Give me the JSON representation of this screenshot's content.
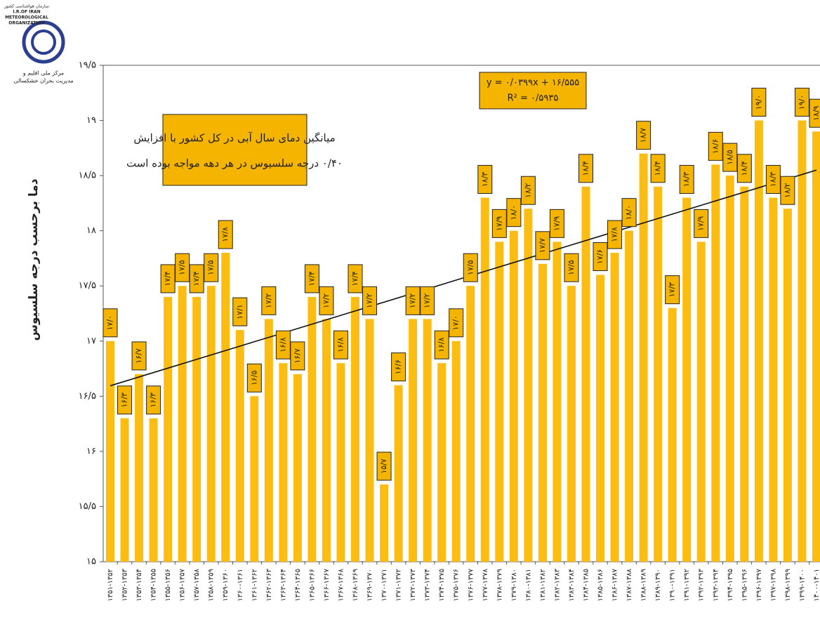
{
  "logo": {
    "org_fa": "سازمان هواشناسی کشور",
    "org_en_1": "I.R.OF IRAN",
    "org_en_2": "METEOROLOGICAL",
    "org_en_3": "ORGANIZATION",
    "center_1": "مرکز ملی اقلیم و",
    "center_2": "مدیریت بحران خشکسالی"
  },
  "chart_data": {
    "type": "bar",
    "y_label": "دما برحسب درجه سلسیوس",
    "annotation": {
      "line1": "میانگین دمای سال آبی در کل کشور با  افزایش",
      "line2": "۰/۴۰ درجه سلسیوس در هر دهه مواجه بوده است"
    },
    "trendline": {
      "equation": "y = ۰/۰۳۹۹x + ۱۶/۵۵۵",
      "r2": "R² = ۰/۵۹۳۵",
      "slope": 0.0399,
      "intercept": 16.555
    },
    "color": "#fcbd13",
    "label_color": "#f5b400",
    "categories": [
      "۱۳۵۱-۱۳۵۲",
      "۱۳۵۲-۱۳۵۳",
      "۱۳۵۳-۱۳۵۴",
      "۱۳۵۴-۱۳۵۵",
      "۱۳۵۵-۱۳۵۶",
      "۱۳۵۶-۱۳۵۷",
      "۱۳۵۷-۱۳۵۸",
      "۱۳۵۸-۱۳۵۹",
      "۱۳۵۹-۱۳۶۰",
      "۱۳۶۰-۱۳۶۱",
      "۱۳۶۱-۱۳۶۲",
      "۱۳۶۲-۱۳۶۳",
      "۱۳۶۳-۱۳۶۴",
      "۱۳۶۴-۱۳۶۵",
      "۱۳۶۵-۱۳۶۶",
      "۱۳۶۶-۱۳۶۷",
      "۱۳۶۷-۱۳۶۸",
      "۱۳۶۸-۱۳۶۹",
      "۱۳۶۹-۱۳۷۰",
      "۱۳۷۰-۱۳۷۱",
      "۱۳۷۱-۱۳۷۲",
      "۱۳۷۲-۱۳۷۳",
      "۱۳۷۳-۱۳۷۴",
      "۱۳۷۴-۱۳۷۵",
      "۱۳۷۵-۱۳۷۶",
      "۱۳۷۶-۱۳۷۷",
      "۱۳۷۷-۱۳۷۸",
      "۱۳۷۸-۱۳۷۹",
      "۱۳۷۹-۱۳۸۰",
      "۱۳۸۰-۱۳۸۱",
      "۱۳۸۱-۱۳۸۲",
      "۱۳۸۲-۱۳۸۳",
      "۱۳۸۳-۱۳۸۴",
      "۱۳۸۴-۱۳۸۵",
      "۱۳۸۵-۱۳۸۶",
      "۱۳۸۶-۱۳۸۷",
      "۱۳۸۷-۱۳۸۸",
      "۱۳۸۸-۱۳۸۹",
      "۱۳۸۹-۱۳۹۰",
      "۱۳۹۰-۱۳۹۱",
      "۱۳۹۱-۱۳۹۲",
      "۱۳۹۲-۱۳۹۳",
      "۱۳۹۳-۱۳۹۴",
      "۱۳۹۴-۱۳۹۵",
      "۱۳۹۵-۱۳۹۶",
      "۱۳۹۶-۱۳۹۷",
      "۱۳۹۷-۱۳۹۸",
      "۱۳۹۸-۱۳۹۹",
      "۱۳۹۹-۱۴۰۰",
      "۱۴۰۰-۱۴۰۱"
    ],
    "values": [
      17.0,
      16.3,
      16.7,
      16.3,
      17.4,
      17.5,
      17.4,
      17.5,
      17.8,
      17.1,
      16.5,
      17.2,
      16.8,
      16.7,
      17.4,
      17.2,
      16.8,
      17.4,
      17.2,
      15.7,
      16.6,
      17.2,
      17.2,
      16.8,
      17.0,
      17.5,
      18.3,
      17.9,
      18.0,
      18.2,
      17.7,
      17.9,
      17.5,
      18.4,
      17.6,
      17.8,
      18.0,
      18.7,
      18.4,
      17.3,
      18.3,
      17.9,
      18.6,
      18.5,
      18.4,
      19.0,
      18.3,
      18.2,
      19.0,
      18.9
    ],
    "value_labels": [
      "۱۷/۰",
      "۱۶/۳",
      "۱۶/۷",
      "۱۶/۳",
      "۱۷/۴",
      "۱۷/۵",
      "۱۷/۴",
      "۱۷/۵",
      "۱۷/۸",
      "۱۷/۱",
      "۱۶/۵",
      "۱۷/۲",
      "۱۶/۸",
      "۱۶/۷",
      "۱۷/۴",
      "۱۷/۲",
      "۱۶/۸",
      "۱۷/۴",
      "۱۷/۲",
      "۱۵/۷",
      "۱۶/۶",
      "۱۷/۲",
      "۱۷/۲",
      "۱۶/۸",
      "۱۷/۰",
      "۱۷/۵",
      "۱۸/۳",
      "۱۷/۹",
      "۱۸/۰",
      "۱۸/۲",
      "۱۷/۷",
      "۱۷/۹",
      "۱۷/۵",
      "۱۸/۴",
      "۱۷/۶",
      "۱۷/۸",
      "۱۸/۰",
      "۱۸/۷",
      "۱۸/۴",
      "۱۷/۳",
      "۱۸/۳",
      "۱۷/۹",
      "۱۸/۶",
      "۱۸/۵",
      "۱۸/۴",
      "۱۹/۰",
      "۱۸/۳",
      "۱۸/۲",
      "۱۹/۰",
      "۱۸/۹"
    ],
    "ylim": [
      15,
      19.5
    ],
    "yticks": [
      {
        "value": 15,
        "label": "۱۵"
      },
      {
        "value": 15.5,
        "label": "۱۵/۵"
      },
      {
        "value": 16,
        "label": "۱۶"
      },
      {
        "value": 16.5,
        "label": "۱۶/۵"
      },
      {
        "value": 17,
        "label": "۱۷"
      },
      {
        "value": 17.5,
        "label": "۱۷/۵"
      },
      {
        "value": 18,
        "label": "۱۸"
      },
      {
        "value": 18.5,
        "label": "۱۸/۵"
      },
      {
        "value": 19,
        "label": "۱۹"
      },
      {
        "value": 19.5,
        "label": "۱۹/۵"
      }
    ],
    "grid": false
  }
}
